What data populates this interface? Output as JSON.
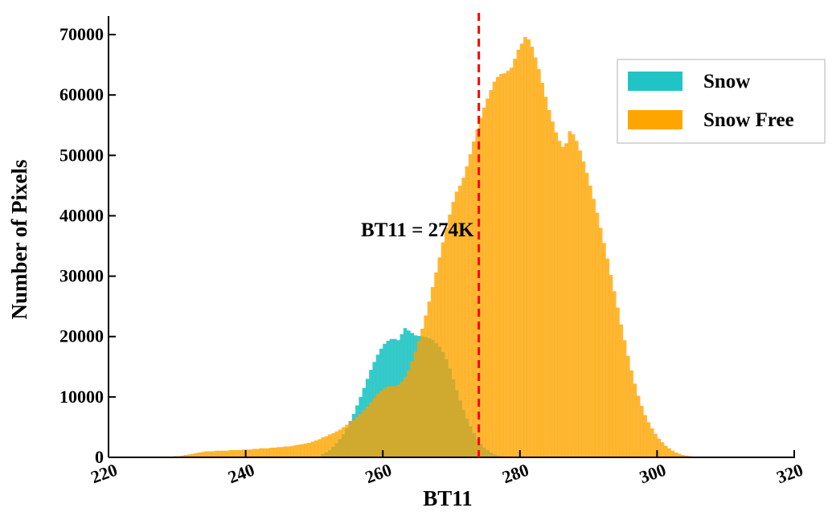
{
  "chart_data": {
    "type": "bar",
    "title": "",
    "xlabel": "BT11",
    "ylabel": "Number of Pixels",
    "xlim": [
      220,
      320
    ],
    "ylim": [
      0,
      72000
    ],
    "x_ticks": [
      "220",
      "240",
      "260",
      "280",
      "300",
      "320"
    ],
    "y_ticks": [
      "0",
      "10000",
      "20000",
      "30000",
      "40000",
      "50000",
      "60000",
      "70000"
    ],
    "grid": false,
    "legend_position": "top-right",
    "bin_edges_start": 226,
    "bin_width": 0.5,
    "series": [
      {
        "name": "Snow",
        "color": "#20c4c4",
        "values": [
          0,
          0,
          0,
          0,
          0,
          0,
          0,
          0,
          0,
          0,
          0,
          0,
          0,
          0,
          0,
          0,
          0,
          0,
          0,
          0,
          0,
          0,
          0,
          0,
          0,
          0,
          0,
          0,
          0,
          0,
          0,
          0,
          0,
          0,
          0,
          0,
          0,
          0,
          0,
          0,
          0,
          0,
          0,
          0,
          0,
          0,
          0,
          0,
          0,
          0,
          500,
          800,
          1200,
          1700,
          2300,
          3000,
          3800,
          4800,
          6000,
          7200,
          8600,
          10000,
          11500,
          13000,
          14500,
          15800,
          17000,
          18000,
          18800,
          19300,
          19600,
          19600,
          19400,
          20400,
          21400,
          21000,
          20600,
          20200,
          20100,
          20000,
          19900,
          19700,
          19400,
          18900,
          18300,
          17400,
          16200,
          14700,
          12900,
          11100,
          9400,
          7800,
          6400,
          5100,
          4000,
          3000,
          2200,
          1600,
          1200,
          800,
          500,
          300,
          200,
          100,
          0,
          0,
          0,
          0,
          0,
          0,
          0,
          0,
          0,
          0,
          0,
          0,
          0,
          0,
          0,
          0,
          0,
          0,
          0,
          0,
          0,
          0,
          0,
          0,
          0,
          0,
          0,
          0,
          0,
          0,
          0,
          0,
          0,
          0,
          0,
          0,
          0,
          0,
          0,
          0,
          0,
          0,
          0,
          0,
          0,
          0,
          0,
          0,
          0,
          0,
          0,
          0,
          0,
          0,
          0,
          0,
          0,
          0,
          0,
          0,
          0,
          0,
          0,
          0,
          0,
          0,
          0,
          0,
          0,
          0,
          0,
          0,
          0,
          0,
          0,
          0,
          0,
          0,
          0,
          0,
          0,
          0
        ]
      },
      {
        "name": "Snow Free",
        "color": "#ffa500",
        "values": [
          0,
          0,
          0,
          0,
          0,
          100,
          100,
          200,
          200,
          300,
          400,
          500,
          600,
          700,
          800,
          900,
          1000,
          1000,
          1000,
          1100,
          1100,
          1100,
          1100,
          1200,
          1200,
          1200,
          1200,
          1300,
          1300,
          1300,
          1400,
          1400,
          1500,
          1500,
          1500,
          1600,
          1600,
          1700,
          1700,
          1800,
          1800,
          1900,
          2000,
          2100,
          2200,
          2300,
          2400,
          2600,
          2800,
          3000,
          3300,
          3500,
          3800,
          4000,
          4300,
          4600,
          5000,
          5400,
          5800,
          6200,
          6700,
          7200,
          7800,
          8400,
          9100,
          9800,
          10500,
          11000,
          11400,
          11700,
          11800,
          11800,
          12000,
          12500,
          13300,
          14400,
          15900,
          17500,
          19300,
          21300,
          23500,
          25800,
          28200,
          30600,
          33100,
          35600,
          38000,
          40200,
          42300,
          44000,
          45000,
          46300,
          48200,
          50200,
          52300,
          54300,
          56200,
          57900,
          59400,
          60800,
          62200,
          63000,
          63500,
          63600,
          64000,
          64500,
          66000,
          67500,
          68500,
          69600,
          69200,
          68000,
          66200,
          64300,
          62000,
          59700,
          57500,
          55600,
          53800,
          52400,
          51400,
          52000,
          54000,
          53500,
          52400,
          50800,
          49000,
          47100,
          45000,
          42800,
          40500,
          38000,
          35500,
          32900,
          30200,
          27500,
          24800,
          22000,
          19400,
          16800,
          14400,
          12200,
          10200,
          8500,
          7000,
          5800,
          4800,
          3900,
          3100,
          2500,
          1900,
          1500,
          1100,
          800,
          600,
          400,
          300,
          200,
          100,
          100,
          100,
          100,
          0,
          0,
          0,
          0,
          0,
          0,
          0,
          0,
          0,
          0,
          0,
          0,
          0,
          0,
          0,
          0,
          0,
          0,
          0,
          0,
          0,
          0
        ]
      }
    ],
    "annotations": [
      {
        "text": "BT11 = 274K",
        "x": 274,
        "style": "dashed-vertical-line",
        "color": "#ff0000"
      }
    ],
    "colors": {
      "snow": "#20c4c4",
      "snow_free": "#ffa500",
      "threshold_line": "#ff0000",
      "overlap": "#cfaa2e"
    }
  }
}
